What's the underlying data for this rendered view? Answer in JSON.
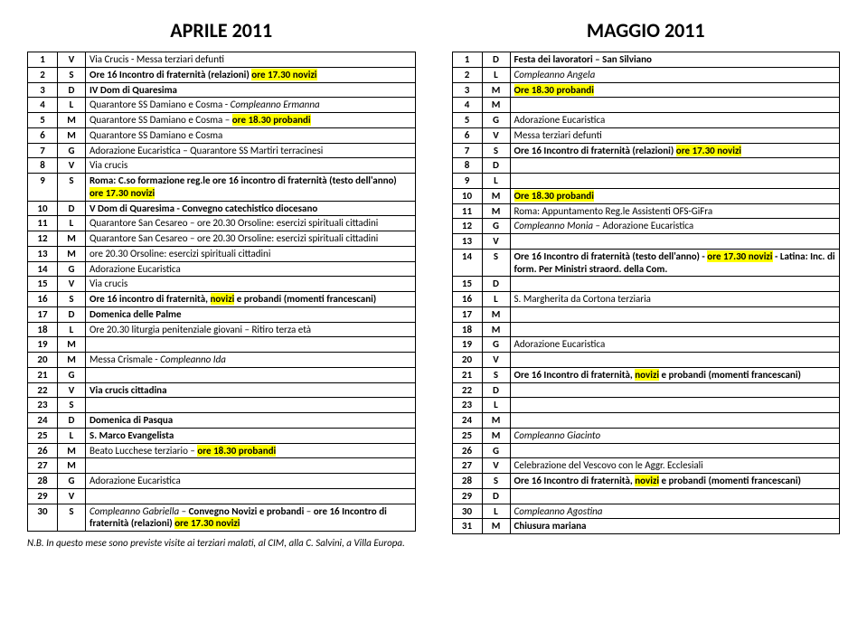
{
  "left": {
    "title": "APRILE 2011",
    "note": "N.B. In questo mese sono previste visite ai terziari malati, al CIM, alla C. Salvini, a Villa Europa.",
    "rows": [
      {
        "n": "1",
        "d": "V",
        "segs": [
          {
            "t": "Via Crucis - Messa terziari defunti"
          }
        ]
      },
      {
        "n": "2",
        "d": "S",
        "bold": true,
        "segs": [
          {
            "t": "Ore 16 Incontro di fraternità (relazioni) "
          },
          {
            "t": "ore 17.30 novizi",
            "hl": true
          }
        ]
      },
      {
        "n": "3",
        "d": "D",
        "bold": true,
        "segs": [
          {
            "t": "IV Dom di Quaresima"
          }
        ]
      },
      {
        "n": "4",
        "d": "L",
        "segs": [
          {
            "t": "Quarantore SS Damiano e Cosma - "
          },
          {
            "t": "Compleanno Ermanna",
            "italic": true
          }
        ]
      },
      {
        "n": "5",
        "d": "M",
        "segs": [
          {
            "t": "Quarantore SS Damiano e Cosma – "
          },
          {
            "t": "ore 18.30 probandi",
            "hl": true,
            "bold": true
          }
        ]
      },
      {
        "n": "6",
        "d": "M",
        "segs": [
          {
            "t": "Quarantore SS Damiano e Cosma"
          }
        ]
      },
      {
        "n": "7",
        "d": "G",
        "segs": [
          {
            "t": "Adorazione Eucaristica – Quarantore SS Martiri terracinesi"
          }
        ]
      },
      {
        "n": "8",
        "d": "V",
        "segs": [
          {
            "t": "Via crucis"
          }
        ]
      },
      {
        "n": "9",
        "d": "S",
        "bold": true,
        "segs": [
          {
            "t": "Roma: C.so formazione reg.le "
          },
          {
            "t": "ore 16 incontro di fraternità (testo dell'anno)",
            "bold": true
          },
          {
            "t": " "
          },
          {
            "t": "ore 17.30 novizi",
            "hl": true
          }
        ]
      },
      {
        "n": "10",
        "d": "D",
        "segs": [
          {
            "t": "V Dom di Quaresima - Convegno catechistico diocesano",
            "bold": true
          }
        ]
      },
      {
        "n": "11",
        "d": "L",
        "segs": [
          {
            "t": "Quarantore San Cesareo – ore 20.30 Orsoline:  esercizi spirituali cittadini"
          }
        ]
      },
      {
        "n": "12",
        "d": "M",
        "segs": [
          {
            "t": "Quarantore San Cesareo – ore 20.30 Orsoline:  esercizi spirituali cittadini"
          }
        ]
      },
      {
        "n": "13",
        "d": "M",
        "segs": [
          {
            "t": "ore 20.30 Orsoline: esercizi spirituali cittadini"
          }
        ]
      },
      {
        "n": "14",
        "d": "G",
        "segs": [
          {
            "t": "Adorazione Eucaristica"
          }
        ]
      },
      {
        "n": "15",
        "d": "V",
        "segs": [
          {
            "t": "Via crucis"
          }
        ]
      },
      {
        "n": "16",
        "d": "S",
        "bold": true,
        "segs": [
          {
            "t": "Ore 16 incontro di fraternità, "
          },
          {
            "t": "novizi",
            "hl": true
          },
          {
            "t": "  e probandi (momenti francescani)"
          }
        ]
      },
      {
        "n": "17",
        "d": "D",
        "bold": true,
        "segs": [
          {
            "t": "Domenica delle Palme"
          }
        ]
      },
      {
        "n": "18",
        "d": "L",
        "segs": [
          {
            "t": "Ore 20.30 liturgia penitenziale giovani – Ritiro terza età"
          }
        ]
      },
      {
        "n": "19",
        "d": "M",
        "segs": []
      },
      {
        "n": "20",
        "d": "M",
        "segs": [
          {
            "t": "Messa Crismale - "
          },
          {
            "t": "Compleanno Ida",
            "italic": true
          }
        ]
      },
      {
        "n": "21",
        "d": "G",
        "segs": []
      },
      {
        "n": "22",
        "d": "V",
        "bold": true,
        "segs": [
          {
            "t": "Via crucis cittadina"
          }
        ]
      },
      {
        "n": "23",
        "d": "S",
        "segs": []
      },
      {
        "n": "24",
        "d": "D",
        "bold": true,
        "segs": [
          {
            "t": "Domenica di Pasqua"
          }
        ]
      },
      {
        "n": "25",
        "d": "L",
        "bold": true,
        "segs": [
          {
            "t": "S. Marco Evangelista"
          }
        ]
      },
      {
        "n": "26",
        "d": "M",
        "segs": [
          {
            "t": "Beato Lucchese terziario – "
          },
          {
            "t": "ore 18.30 probandi",
            "hl": true,
            "bold": true
          }
        ]
      },
      {
        "n": "27",
        "d": "M",
        "segs": []
      },
      {
        "n": "28",
        "d": "G",
        "segs": [
          {
            "t": "Adorazione Eucaristica"
          }
        ]
      },
      {
        "n": "29",
        "d": "V",
        "segs": []
      },
      {
        "n": "30",
        "d": "S",
        "segs": [
          {
            "t": "Compleanno Gabriella",
            "italic": true
          },
          {
            "t": " – "
          },
          {
            "t": "Convegno Novizi e probandi",
            "bold": true
          },
          {
            "t": " – "
          },
          {
            "t": "ore 16 Incontro di fraternità (relazioni) ",
            "bold": true
          },
          {
            "t": "ore 17.30 novizi",
            "hl": true,
            "bold": true
          }
        ]
      }
    ]
  },
  "right": {
    "title": "MAGGIO 2011",
    "rows": [
      {
        "n": "1",
        "d": "D",
        "bold": true,
        "segs": [
          {
            "t": "Festa dei lavoratori – San Silviano"
          }
        ]
      },
      {
        "n": "2",
        "d": "L",
        "segs": [
          {
            "t": "Compleanno Angela",
            "italic": true
          }
        ]
      },
      {
        "n": "3",
        "d": "M",
        "bold": true,
        "segs": [
          {
            "t": "Ore 18.30 probandi",
            "hl": true
          }
        ]
      },
      {
        "n": "4",
        "d": "M",
        "segs": []
      },
      {
        "n": "5",
        "d": "G",
        "segs": [
          {
            "t": "Adorazione Eucaristica"
          }
        ]
      },
      {
        "n": "6",
        "d": "V",
        "segs": [
          {
            "t": "Messa terziari defunti"
          }
        ]
      },
      {
        "n": "7",
        "d": "S",
        "bold": true,
        "segs": [
          {
            "t": "Ore 16 Incontro di fraternità (relazioni) "
          },
          {
            "t": "ore 17.30 novizi",
            "hl": true
          }
        ]
      },
      {
        "n": "8",
        "d": "D",
        "segs": []
      },
      {
        "n": "9",
        "d": "L",
        "segs": []
      },
      {
        "n": "10",
        "d": "M",
        "bold": true,
        "segs": [
          {
            "t": "Ore 18.30 probandi",
            "hl": true
          }
        ]
      },
      {
        "n": "11",
        "d": "M",
        "segs": [
          {
            "t": "Roma: Appuntamento Reg.le  Assistenti OFS-GiFra"
          }
        ]
      },
      {
        "n": "12",
        "d": "G",
        "segs": [
          {
            "t": "Compleanno Monia",
            "italic": true
          },
          {
            "t": " – Adorazione Eucaristica"
          }
        ]
      },
      {
        "n": "13",
        "d": "V",
        "segs": []
      },
      {
        "n": "14",
        "d": "S",
        "bold": true,
        "segs": [
          {
            "t": "Ore 16 Incontro di fraternità (testo dell'anno) - "
          },
          {
            "t": "ore 17.30 novizi",
            "hl": true
          },
          {
            "t": " - Latina: Inc. di form. Per Ministri straord. della Com."
          }
        ]
      },
      {
        "n": "15",
        "d": "D",
        "segs": []
      },
      {
        "n": "16",
        "d": "L",
        "segs": [
          {
            "t": "S. Margherita da Cortona terziaria"
          }
        ]
      },
      {
        "n": "17",
        "d": "M",
        "segs": []
      },
      {
        "n": "18",
        "d": "M",
        "segs": []
      },
      {
        "n": "19",
        "d": "G",
        "segs": [
          {
            "t": "Adorazione Eucaristica"
          }
        ]
      },
      {
        "n": "20",
        "d": "V",
        "segs": []
      },
      {
        "n": "21",
        "d": "S",
        "bold": true,
        "segs": [
          {
            "t": "Ore 16 Incontro di fraternità, "
          },
          {
            "t": "novizi",
            "hl": true
          },
          {
            "t": " e probandi (momenti francescani)"
          }
        ]
      },
      {
        "n": "22",
        "d": "D",
        "segs": []
      },
      {
        "n": "23",
        "d": "L",
        "segs": []
      },
      {
        "n": "24",
        "d": "M",
        "segs": []
      },
      {
        "n": "25",
        "d": "M",
        "segs": [
          {
            "t": "Compleanno Giacinto",
            "italic": true
          }
        ]
      },
      {
        "n": "26",
        "d": "G",
        "segs": []
      },
      {
        "n": "27",
        "d": "V",
        "segs": [
          {
            "t": "Celebrazione del Vescovo con le Aggr. Ecclesiali"
          }
        ]
      },
      {
        "n": "28",
        "d": "S",
        "bold": true,
        "segs": [
          {
            "t": "Ore 16 Incontro di fraternità, "
          },
          {
            "t": "novizi",
            "hl": true
          },
          {
            "t": " e probandi (momenti francescani)"
          }
        ]
      },
      {
        "n": "29",
        "d": "D",
        "segs": []
      },
      {
        "n": "30",
        "d": "L",
        "segs": [
          {
            "t": "Compleanno Agostina",
            "italic": true
          }
        ]
      },
      {
        "n": "31",
        "d": "M",
        "bold": true,
        "segs": [
          {
            "t": "Chiusura mariana"
          }
        ]
      }
    ]
  }
}
